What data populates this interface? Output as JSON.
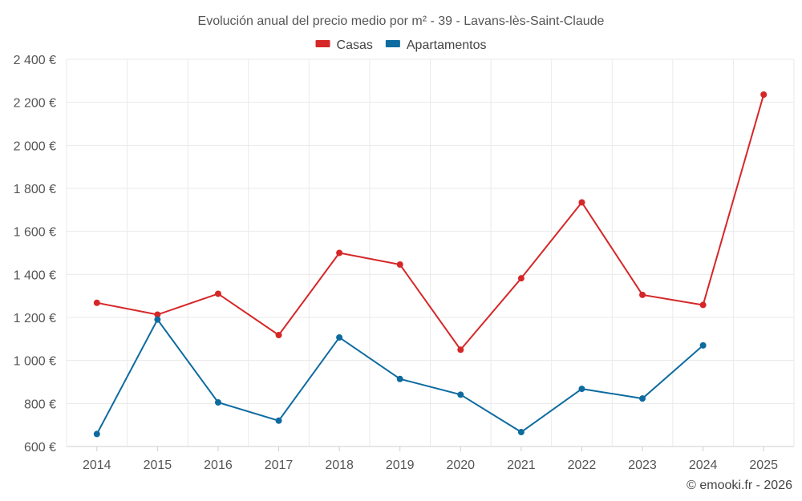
{
  "chart_data": {
    "type": "line",
    "title": "Evolución anual del precio medio por m² - 39 - Lavans-lès-Saint-Claude",
    "categories": [
      "2014",
      "2015",
      "2016",
      "2017",
      "2018",
      "2019",
      "2020",
      "2021",
      "2022",
      "2023",
      "2024",
      "2025"
    ],
    "ylim": [
      600,
      2400
    ],
    "yticks": [
      600,
      800,
      1000,
      1200,
      1400,
      1600,
      1800,
      2000,
      2200,
      2400
    ],
    "ytick_labels": [
      "600 €",
      "800 €",
      "1 000 €",
      "1 200 €",
      "1 400 €",
      "1 600 €",
      "1 800 €",
      "2 000 €",
      "2 200 €",
      "2 400 €"
    ],
    "grid": true,
    "legend_position": "top-center",
    "series": [
      {
        "name": "Casas",
        "color": "#d62728",
        "values": [
          1268,
          1213,
          1310,
          1118,
          1500,
          1446,
          1050,
          1382,
          1735,
          1305,
          1258,
          2236
        ]
      },
      {
        "name": "Apartamentos",
        "color": "#0e6ba0",
        "values": [
          658,
          1190,
          805,
          720,
          1107,
          914,
          841,
          667,
          868,
          823,
          1070,
          null
        ]
      }
    ],
    "credit": "© emooki.fr - 2026"
  }
}
